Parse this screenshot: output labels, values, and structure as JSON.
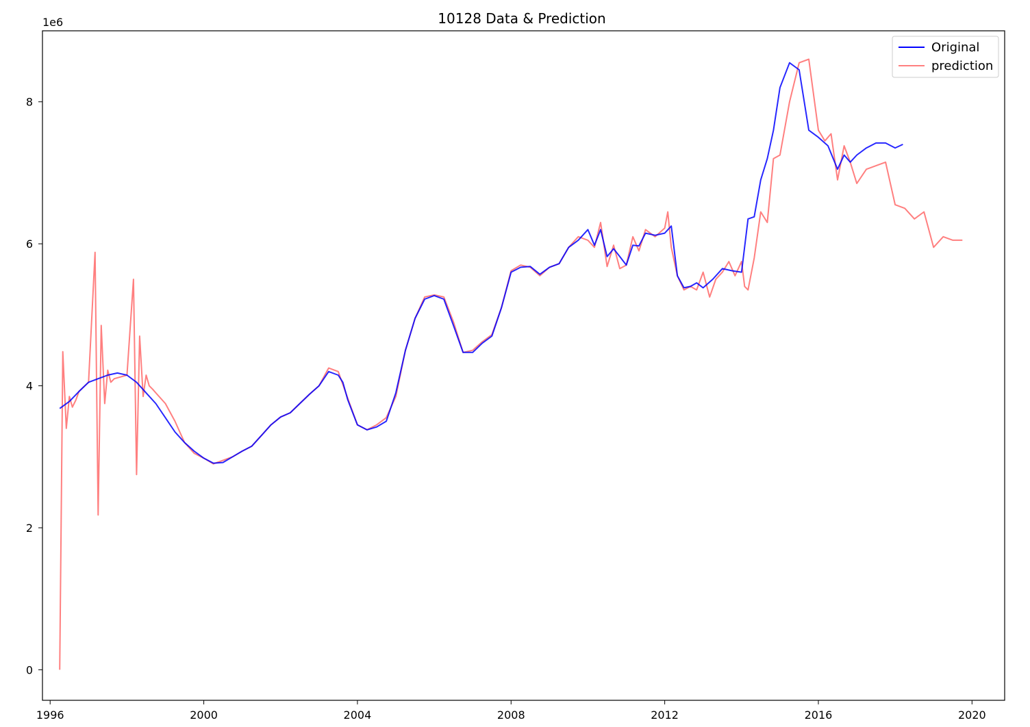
{
  "chart_data": {
    "type": "line",
    "title": "10128 Data & Prediction",
    "xlabel": "",
    "ylabel": "",
    "y_offset_label": "1e6",
    "xlim": [
      1995.8,
      2020.85
    ],
    "ylim": [
      -0.43,
      9.0
    ],
    "x_ticks": [
      1996,
      2000,
      2004,
      2008,
      2012,
      2016,
      2020
    ],
    "x_tick_labels": [
      "1996",
      "2000",
      "2004",
      "2008",
      "2012",
      "2016",
      "2020"
    ],
    "y_ticks": [
      0,
      2,
      4,
      6,
      8
    ],
    "y_tick_labels": [
      "0",
      "2",
      "4",
      "6",
      "8"
    ],
    "grid": false,
    "legend_position": "top-right",
    "series": [
      {
        "name": "Original",
        "color": "#0000ff",
        "x": [
          1996.25,
          1996.5,
          1996.75,
          1997.0,
          1997.25,
          1997.5,
          1997.75,
          1998.0,
          1998.25,
          1998.5,
          1998.75,
          1999.0,
          1999.25,
          1999.5,
          1999.75,
          2000.0,
          2000.25,
          2000.5,
          2000.75,
          2001.0,
          2001.25,
          2001.5,
          2001.75,
          2002.0,
          2002.25,
          2002.5,
          2002.75,
          2003.0,
          2003.25,
          2003.5,
          2003.62,
          2003.75,
          2004.0,
          2004.25,
          2004.5,
          2004.75,
          2005.0,
          2005.25,
          2005.5,
          2005.75,
          2006.0,
          2006.25,
          2006.5,
          2006.75,
          2007.0,
          2007.25,
          2007.5,
          2007.75,
          2008.0,
          2008.25,
          2008.5,
          2008.75,
          2009.0,
          2009.25,
          2009.5,
          2009.75,
          2010.0,
          2010.17,
          2010.33,
          2010.5,
          2010.67,
          2010.83,
          2011.0,
          2011.17,
          2011.33,
          2011.5,
          2011.75,
          2012.0,
          2012.17,
          2012.33,
          2012.5,
          2012.67,
          2012.83,
          2013.0,
          2013.25,
          2013.5,
          2013.75,
          2014.0,
          2014.17,
          2014.33,
          2014.5,
          2014.67,
          2014.83,
          2015.0,
          2015.25,
          2015.5,
          2015.75,
          2016.0,
          2016.25,
          2016.5,
          2016.67,
          2016.83,
          2017.0,
          2017.25,
          2017.5,
          2017.75,
          2018.0,
          2018.2
        ],
        "y": [
          3.68,
          3.78,
          3.92,
          4.05,
          4.1,
          4.15,
          4.18,
          4.15,
          4.05,
          3.9,
          3.75,
          3.55,
          3.35,
          3.2,
          3.08,
          2.98,
          2.91,
          2.92,
          3.0,
          3.08,
          3.15,
          3.3,
          3.45,
          3.56,
          3.62,
          3.75,
          3.88,
          4.0,
          4.2,
          4.15,
          4.05,
          3.8,
          3.45,
          3.38,
          3.42,
          3.5,
          3.9,
          4.5,
          4.95,
          5.22,
          5.27,
          5.22,
          4.85,
          4.47,
          4.47,
          4.6,
          4.7,
          5.1,
          5.6,
          5.67,
          5.68,
          5.57,
          5.67,
          5.72,
          5.95,
          6.05,
          6.2,
          5.98,
          6.2,
          5.82,
          5.93,
          5.82,
          5.7,
          5.98,
          5.97,
          6.15,
          6.12,
          6.15,
          6.25,
          5.55,
          5.38,
          5.4,
          5.45,
          5.38,
          5.5,
          5.65,
          5.62,
          5.6,
          6.35,
          6.38,
          6.9,
          7.2,
          7.6,
          8.2,
          8.55,
          8.45,
          7.6,
          7.5,
          7.38,
          7.05,
          7.25,
          7.15,
          7.25,
          7.35,
          7.42,
          7.42,
          7.35,
          7.4
        ]
      },
      {
        "name": "prediction",
        "color": "#ff0000",
        "x": [
          1996.25,
          1996.33,
          1996.42,
          1996.5,
          1996.58,
          1996.67,
          1996.75,
          1997.0,
          1997.17,
          1997.25,
          1997.33,
          1997.42,
          1997.5,
          1997.58,
          1997.67,
          1998.0,
          1998.17,
          1998.25,
          1998.33,
          1998.42,
          1998.5,
          1998.58,
          1998.67,
          1998.75,
          1999.0,
          1999.25,
          1999.5,
          1999.75,
          2000.0,
          2000.25,
          2000.5,
          2000.75,
          2001.0,
          2001.25,
          2001.5,
          2001.75,
          2002.0,
          2002.25,
          2002.5,
          2002.75,
          2003.0,
          2003.25,
          2003.5,
          2003.75,
          2004.0,
          2004.25,
          2004.5,
          2004.75,
          2005.0,
          2005.25,
          2005.5,
          2005.75,
          2006.0,
          2006.25,
          2006.5,
          2006.75,
          2007.0,
          2007.25,
          2007.5,
          2007.75,
          2008.0,
          2008.25,
          2008.5,
          2008.75,
          2009.0,
          2009.25,
          2009.5,
          2009.75,
          2010.0,
          2010.17,
          2010.33,
          2010.5,
          2010.67,
          2010.83,
          2011.0,
          2011.17,
          2011.33,
          2011.5,
          2011.75,
          2012.0,
          2012.08,
          2012.17,
          2012.33,
          2012.5,
          2012.67,
          2012.83,
          2013.0,
          2013.17,
          2013.33,
          2013.5,
          2013.67,
          2013.83,
          2014.0,
          2014.08,
          2014.17,
          2014.33,
          2014.5,
          2014.67,
          2014.83,
          2015.0,
          2015.25,
          2015.5,
          2015.75,
          2016.0,
          2016.17,
          2016.33,
          2016.5,
          2016.67,
          2016.83,
          2017.0,
          2017.25,
          2017.5,
          2017.75,
          2018.0,
          2018.25,
          2018.5,
          2018.75,
          2019.0,
          2019.25,
          2019.5,
          2019.75
        ],
        "y": [
          0.0,
          4.48,
          3.4,
          3.85,
          3.7,
          3.8,
          3.92,
          4.05,
          5.88,
          2.18,
          4.85,
          3.75,
          4.22,
          4.05,
          4.1,
          4.15,
          5.5,
          2.75,
          4.7,
          3.85,
          4.15,
          4.0,
          3.95,
          3.9,
          3.75,
          3.5,
          3.2,
          3.05,
          2.98,
          2.9,
          2.95,
          3.0,
          3.08,
          3.15,
          3.3,
          3.45,
          3.56,
          3.62,
          3.75,
          3.88,
          4.0,
          4.25,
          4.2,
          3.82,
          3.45,
          3.38,
          3.45,
          3.55,
          3.85,
          4.5,
          4.95,
          5.25,
          5.28,
          5.25,
          4.9,
          4.47,
          4.5,
          4.62,
          4.72,
          5.1,
          5.62,
          5.7,
          5.67,
          5.55,
          5.67,
          5.72,
          5.95,
          6.1,
          6.05,
          5.95,
          6.3,
          5.68,
          5.98,
          5.65,
          5.7,
          6.1,
          5.9,
          6.2,
          6.1,
          6.22,
          6.45,
          5.95,
          5.55,
          5.35,
          5.4,
          5.35,
          5.6,
          5.25,
          5.5,
          5.6,
          5.75,
          5.55,
          5.75,
          5.4,
          5.35,
          5.8,
          6.45,
          6.3,
          7.2,
          7.25,
          8.0,
          8.55,
          8.6,
          7.6,
          7.45,
          7.55,
          6.9,
          7.38,
          7.15,
          6.85,
          7.05,
          7.1,
          7.15,
          6.55,
          6.5,
          6.35,
          6.45,
          5.95,
          6.1,
          6.05,
          6.05
        ]
      }
    ]
  }
}
